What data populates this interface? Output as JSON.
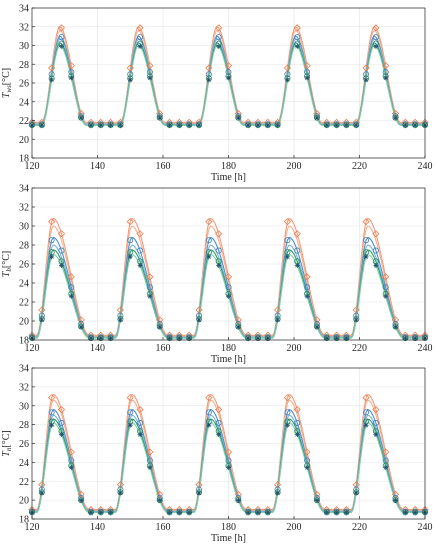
{
  "figure": {
    "panel_colors": {
      "orange_series": [
        "#f39a7a",
        "#f3b08f",
        "#f6c3a8"
      ],
      "blue_series": [
        "#4a8fc9",
        "#7fb0dc",
        "#a9cdea"
      ],
      "green_series": [
        "#2e9a6b",
        "#7ecfa8",
        "#b3e4cc"
      ],
      "marker_orange": "#f07a4a",
      "marker_blue": "#3b7fc0",
      "marker_green": "#2a8a5c",
      "marker_dark": "#1f4f6a"
    }
  },
  "chart_data": [
    {
      "type": "line",
      "xlabel": "Time [h]",
      "ylabel": "T_ws [°C]",
      "ylabel_main": "T",
      "ylabel_sub": "ws",
      "ylabel_unit": "[°C]",
      "xlim": [
        120,
        240
      ],
      "ylim": [
        18,
        34
      ],
      "xticks": [
        "120",
        "140",
        "160",
        "180",
        "200",
        "220",
        "240"
      ],
      "yticks": [
        "18",
        "20",
        "22",
        "24",
        "26",
        "28",
        "30",
        "32",
        "34"
      ],
      "grid": true,
      "profile": {
        "period": 24,
        "base": 21.6,
        "peak": 32.0,
        "peak_offset": 8.5,
        "rise": 5.5,
        "fall": 8.0
      },
      "series": [
        {
          "color_key": "orange",
          "peak": 32.0,
          "base": 21.8,
          "marker": "diamond"
        },
        {
          "color_key": "orange",
          "peak": 31.6,
          "base": 21.7,
          "marker": "none"
        },
        {
          "color_key": "blue",
          "peak": 31.0,
          "base": 21.6,
          "marker": "circle"
        },
        {
          "color_key": "blue",
          "peak": 30.7,
          "base": 21.6,
          "marker": "none"
        },
        {
          "color_key": "green",
          "peak": 30.3,
          "base": 21.5,
          "marker": "circle"
        },
        {
          "color_key": "green",
          "peak": 30.0,
          "base": 21.5,
          "marker": "star"
        }
      ]
    },
    {
      "type": "line",
      "xlabel": "Time [h]",
      "ylabel": "T_b [°C]",
      "ylabel_main": "T",
      "ylabel_sub": "b",
      "ylabel_unit": "[°C]",
      "xlim": [
        120,
        240
      ],
      "ylim": [
        18,
        34
      ],
      "xticks": [
        "120",
        "140",
        "160",
        "180",
        "200",
        "220",
        "240"
      ],
      "yticks": [
        "18",
        "20",
        "22",
        "24",
        "26",
        "28",
        "30",
        "32",
        "34"
      ],
      "grid": true,
      "profile": {
        "period": 24,
        "base": 18.3,
        "peak": 30.8,
        "peak_offset": 6.5,
        "rise": 5.0,
        "fall": 11.0
      },
      "series": [
        {
          "color_key": "orange",
          "peak": 30.8,
          "base": 18.5,
          "marker": "diamond"
        },
        {
          "color_key": "orange",
          "peak": 30.0,
          "base": 18.4,
          "marker": "none"
        },
        {
          "color_key": "blue",
          "peak": 28.8,
          "base": 18.3,
          "marker": "circle"
        },
        {
          "color_key": "blue",
          "peak": 28.0,
          "base": 18.3,
          "marker": "none"
        },
        {
          "color_key": "green",
          "peak": 27.5,
          "base": 18.2,
          "marker": "circle"
        },
        {
          "color_key": "green",
          "peak": 27.0,
          "base": 18.2,
          "marker": "star"
        }
      ]
    },
    {
      "type": "line",
      "xlabel": "Time [h]",
      "ylabel": "T_n [°C]",
      "ylabel_main": "T",
      "ylabel_sub": "n",
      "ylabel_unit": "[°C]",
      "xlim": [
        120,
        240
      ],
      "ylim": [
        18,
        34
      ],
      "xticks": [
        "120",
        "140",
        "160",
        "180",
        "200",
        "220",
        "240"
      ],
      "yticks": [
        "18",
        "20",
        "22",
        "24",
        "26",
        "28",
        "30",
        "32",
        "34"
      ],
      "grid": true,
      "profile": {
        "period": 24,
        "base": 18.8,
        "peak": 31.2,
        "peak_offset": 6.5,
        "rise": 5.0,
        "fall": 11.0
      },
      "series": [
        {
          "color_key": "orange",
          "peak": 31.2,
          "base": 19.0,
          "marker": "diamond"
        },
        {
          "color_key": "orange",
          "peak": 30.6,
          "base": 18.9,
          "marker": "none"
        },
        {
          "color_key": "blue",
          "peak": 29.6,
          "base": 18.8,
          "marker": "circle"
        },
        {
          "color_key": "blue",
          "peak": 29.0,
          "base": 18.8,
          "marker": "none"
        },
        {
          "color_key": "green",
          "peak": 28.6,
          "base": 18.7,
          "marker": "circle"
        },
        {
          "color_key": "green",
          "peak": 28.2,
          "base": 18.7,
          "marker": "star"
        }
      ]
    }
  ]
}
